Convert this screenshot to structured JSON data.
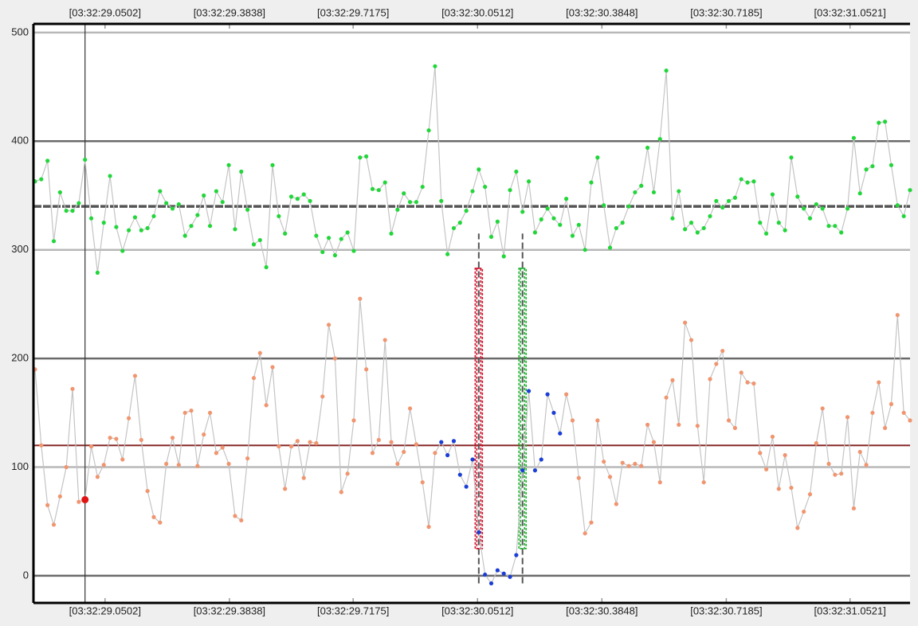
{
  "chart_data": {
    "type": "line",
    "xlim": [
      -0.25,
      140
    ],
    "xticks": [
      {
        "value": 11.2,
        "label": "[03:32:29.0502]"
      },
      {
        "value": 31.1,
        "label": "[03:32:29.3838]"
      },
      {
        "value": 50.9,
        "label": "[03:32:29.7175]"
      },
      {
        "value": 70.8,
        "label": "[03:32:30.0512]"
      },
      {
        "value": 90.7,
        "label": "[03:32:30.3848]"
      },
      {
        "value": 110.6,
        "label": "[03:32:30.7185]"
      },
      {
        "value": 130.4,
        "label": "[03:32:31.0521]"
      }
    ],
    "ylim": [
      -25,
      508
    ],
    "yticks": [
      0,
      100,
      200,
      300,
      400,
      500
    ],
    "grid": true,
    "series": [
      {
        "color": "#22d63a",
        "values": [
          363,
          365,
          382,
          308,
          353,
          336,
          336,
          343,
          383,
          329,
          279,
          325,
          368,
          321,
          299,
          318,
          330,
          318,
          320,
          331,
          354,
          343,
          338,
          342,
          313,
          322,
          332,
          350,
          322,
          354,
          344,
          378,
          319,
          372,
          337,
          305,
          309,
          284,
          378,
          331,
          315,
          349,
          347,
          351,
          345,
          313,
          298,
          311,
          295,
          310,
          316,
          299,
          385,
          386,
          356,
          355,
          362,
          315,
          337,
          352,
          344,
          344,
          358,
          410,
          469,
          345,
          296,
          320,
          325,
          336,
          354,
          374,
          358,
          312,
          326,
          294,
          355,
          372,
          335,
          363,
          316,
          328,
          338,
          329,
          323,
          347,
          313,
          323,
          300,
          362,
          385,
          341,
          302,
          320,
          325,
          340,
          353,
          359,
          394,
          353,
          402,
          465,
          329,
          354,
          319,
          325,
          316,
          320,
          331,
          345,
          339,
          345,
          348,
          365,
          362,
          363,
          325,
          315,
          351,
          325,
          318,
          385,
          349,
          338,
          329,
          342,
          338,
          322,
          322,
          316,
          338,
          403,
          352,
          374,
          377,
          417,
          418,
          378,
          341,
          331,
          355
        ]
      },
      {
        "color": "#f0956f",
        "highlight": {
          "start": 65,
          "end": 84,
          "color": "#1a3ed6"
        },
        "values": [
          190,
          120,
          65,
          47,
          73,
          100,
          172,
          68,
          70,
          119,
          91,
          102,
          127,
          126,
          107,
          145,
          184,
          125,
          78,
          54,
          49,
          103,
          127,
          102,
          150,
          152,
          101,
          130,
          150,
          113,
          118,
          103,
          55,
          51,
          108,
          182,
          205,
          157,
          192,
          119,
          80,
          119,
          124,
          90,
          123,
          122,
          165,
          231,
          200,
          77,
          94,
          143,
          255,
          190,
          113,
          125,
          217,
          123,
          103,
          114,
          154,
          121,
          86,
          45,
          113,
          123,
          111,
          124,
          93,
          82,
          107,
          40,
          1,
          -7,
          5,
          2,
          -1,
          19,
          97,
          170,
          97,
          107,
          167,
          150,
          131,
          167,
          143,
          90,
          39,
          49,
          143,
          105,
          91,
          66,
          104,
          101,
          103,
          101,
          139,
          123,
          86,
          164,
          180,
          139,
          233,
          217,
          138,
          86,
          181,
          195,
          207,
          143,
          136,
          187,
          178,
          177,
          113,
          98,
          128,
          80,
          111,
          81,
          44,
          59,
          75,
          122,
          154,
          103,
          93,
          94,
          146,
          62,
          114,
          102,
          150,
          178,
          136,
          158,
          240,
          150,
          143
        ]
      }
    ],
    "reference_lines": [
      {
        "value": 340,
        "color": "#555555"
      },
      {
        "value": 120,
        "color": "#8b2b2b"
      }
    ],
    "cursor": {
      "index": 8,
      "series": 1,
      "color": "#e01414"
    },
    "markers": [
      {
        "index": 71,
        "color": "#d0102a"
      },
      {
        "index": 78,
        "color": "#1fb02f"
      }
    ],
    "marker_box": [
      25,
      283
    ],
    "marker_line": [
      -7,
      315
    ]
  }
}
